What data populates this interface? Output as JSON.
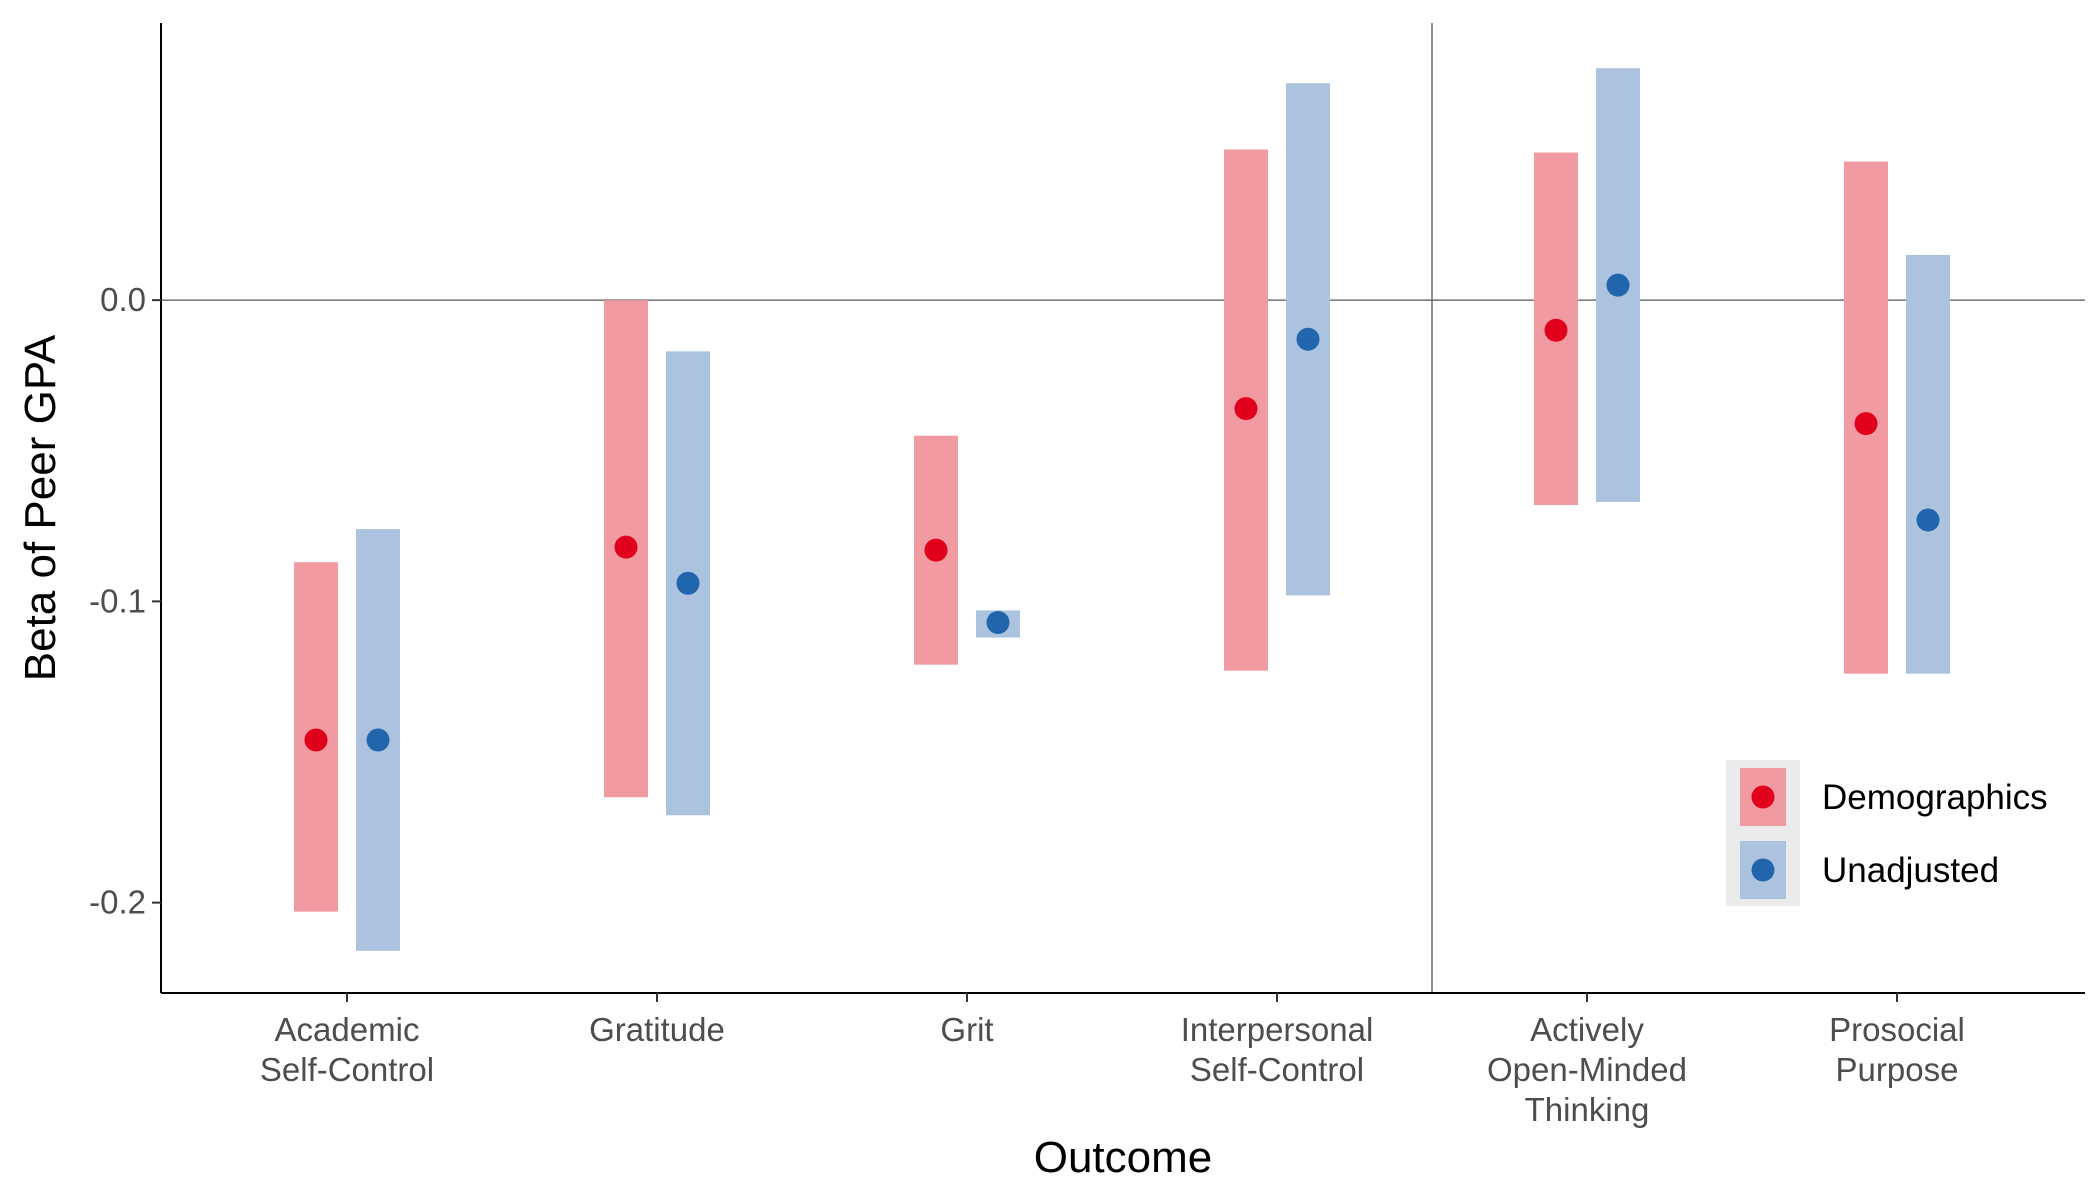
{
  "chart_data": {
    "type": "scatter",
    "xlabel": "Outcome",
    "ylabel": "Beta of Peer GPA",
    "ylim": [
      -0.23,
      0.092
    ],
    "yticks": [
      0.0,
      -0.1,
      -0.2
    ],
    "ytick_labels": [
      "0.0",
      "-0.1",
      "-0.2"
    ],
    "grid": false,
    "reference_line_y": 0.0,
    "divider_after_category": 4,
    "categories": [
      {
        "label_lines": [
          "Academic",
          "Self-Control"
        ]
      },
      {
        "label_lines": [
          "Gratitude"
        ]
      },
      {
        "label_lines": [
          "Grit"
        ]
      },
      {
        "label_lines": [
          "Interpersonal",
          "Self-Control"
        ]
      },
      {
        "label_lines": [
          "Actively",
          "Open-Minded",
          "Thinking"
        ]
      },
      {
        "label_lines": [
          "Prosocial",
          "Purpose"
        ]
      }
    ],
    "series": [
      {
        "name": "Demographics",
        "point_color": "#e0001b",
        "interval_color": "#f19aa2",
        "estimates": [
          -0.146,
          -0.082,
          -0.083,
          -0.036,
          -0.01,
          -0.041
        ],
        "lower": [
          -0.203,
          -0.165,
          -0.121,
          -0.123,
          -0.068,
          -0.124
        ],
        "upper": [
          -0.087,
          0.0,
          -0.045,
          0.05,
          0.049,
          0.046
        ]
      },
      {
        "name": "Unadjusted",
        "point_color": "#2166ac",
        "interval_color": "#abc3de",
        "estimates": [
          -0.146,
          -0.094,
          -0.107,
          -0.013,
          0.005,
          -0.073
        ],
        "lower": [
          -0.216,
          -0.171,
          -0.112,
          -0.098,
          -0.067,
          -0.124
        ],
        "upper": [
          -0.076,
          -0.017,
          -0.103,
          0.072,
          0.077,
          0.015
        ]
      }
    ],
    "legend": {
      "placement": "bottom-right",
      "background": "#ebebeb"
    }
  }
}
